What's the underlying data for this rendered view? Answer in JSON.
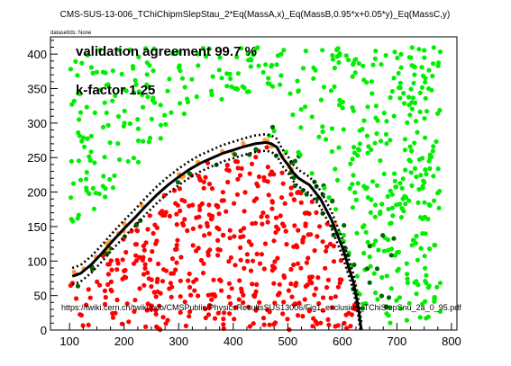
{
  "chart_data": {
    "type": "scatter",
    "title": "CMS-SUS-13-006_TChiChipmSlepStau_2*Eq(MassA,x)_Eq(MassB,0.95*x+0.05*y)_Eq(MassC,y)",
    "subtitle": "datasetIds: None",
    "xlabel": "",
    "ylabel": "",
    "xlim": [
      65,
      810
    ],
    "ylim": [
      0,
      425
    ],
    "xticks": [
      100,
      200,
      300,
      400,
      500,
      600,
      700,
      800
    ],
    "yticks": [
      0,
      50,
      100,
      150,
      200,
      250,
      300,
      350,
      400
    ],
    "grid": false,
    "annotations": [
      "validation agreement 99.7 %",
      "k-factor 1.25",
      "https://twiki.cern.ch/twiki/pub/CMSPublic/PhysicsResultsSUS13006/Fig1_exclusion_TChiSlepSnu_2a_0_95.pdf"
    ],
    "colors": {
      "excluded": "#ff0000",
      "allowed": "#00ee00",
      "excluded_not_in_official": "#ff9933",
      "allowed_but_officially_excluded": "#006600",
      "official_contour": "#000000"
    },
    "series": [
      {
        "role": "excluded",
        "color": "#ff0000",
        "description": "points generated inside the region below the official exclusion contour"
      },
      {
        "role": "allowed",
        "color": "#00ee00",
        "description": "points generated above/right of the contour band"
      },
      {
        "role": "excluded_not_in_official",
        "color": "#ff9933",
        "description": "points along the upper edge of the contour band"
      },
      {
        "role": "allowed_but_officially_excluded",
        "color": "#006600",
        "description": "points along the lower edge of the contour band"
      }
    ],
    "contour": {
      "solid": [
        [
          105,
          78
        ],
        [
          120,
          82
        ],
        [
          140,
          95
        ],
        [
          160,
          112
        ],
        [
          180,
          130
        ],
        [
          200,
          147
        ],
        [
          220,
          163
        ],
        [
          240,
          180
        ],
        [
          260,
          196
        ],
        [
          280,
          210
        ],
        [
          300,
          222
        ],
        [
          320,
          233
        ],
        [
          340,
          242
        ],
        [
          360,
          249
        ],
        [
          380,
          256
        ],
        [
          400,
          261
        ],
        [
          420,
          266
        ],
        [
          440,
          270
        ],
        [
          460,
          272
        ],
        [
          470,
          270
        ],
        [
          480,
          265
        ],
        [
          490,
          250
        ],
        [
          500,
          240
        ],
        [
          510,
          228
        ],
        [
          520,
          220
        ],
        [
          530,
          215
        ],
        [
          540,
          210
        ],
        [
          550,
          200
        ],
        [
          560,
          190
        ],
        [
          570,
          175
        ],
        [
          580,
          160
        ],
        [
          590,
          140
        ],
        [
          600,
          120
        ],
        [
          610,
          95
        ],
        [
          620,
          70
        ],
        [
          625,
          50
        ],
        [
          630,
          30
        ],
        [
          633,
          10
        ],
        [
          635,
          0
        ]
      ],
      "dotted_offsets": [
        -12,
        12
      ]
    }
  }
}
